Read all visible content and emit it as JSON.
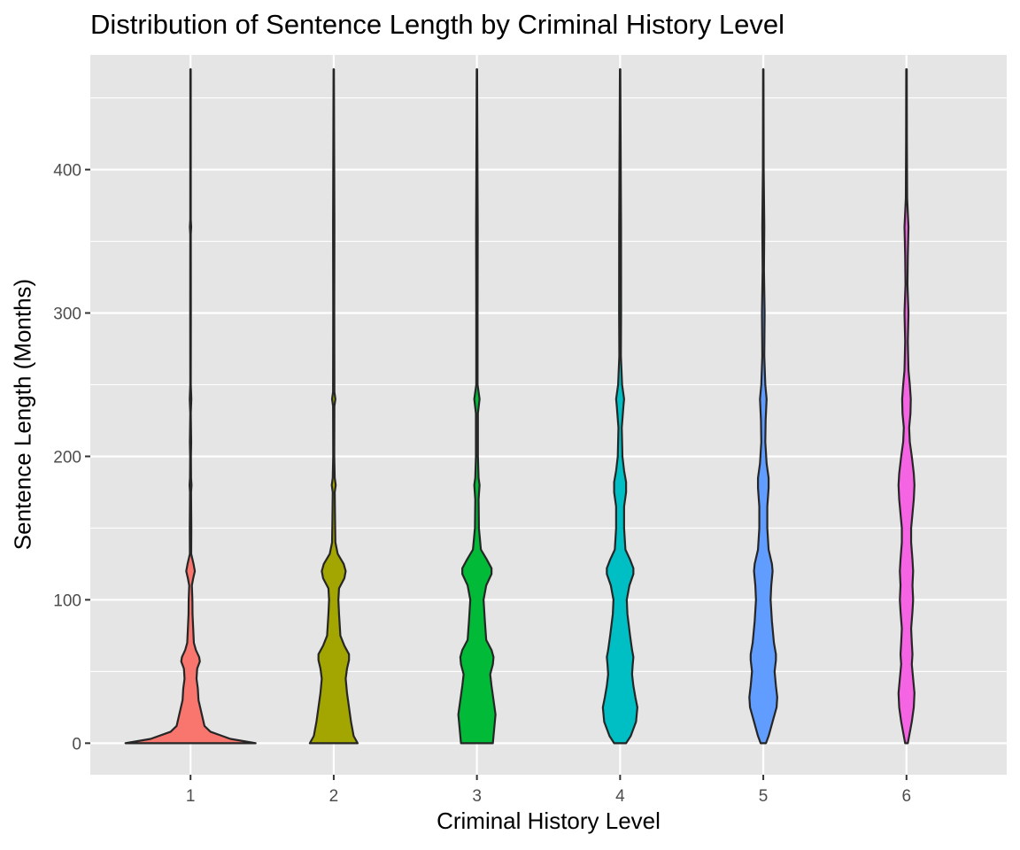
{
  "chart_data": {
    "type": "violin",
    "title": "Distribution of Sentence Length by Criminal History Level",
    "xlabel": "Criminal History Level",
    "ylabel": "Sentence Length (Months)",
    "categories": [
      "1",
      "2",
      "3",
      "4",
      "5",
      "6"
    ],
    "ylim": [
      -22,
      480
    ],
    "yticks": [
      0,
      100,
      200,
      300,
      400
    ],
    "grid": true,
    "legend": "none",
    "background": "#e5e5e5",
    "outline_color": "#262626",
    "series": [
      {
        "category": "1",
        "color": "#f8766d",
        "data_range": [
          0,
          470
        ],
        "density_profile": [
          [
            0,
            0.98
          ],
          [
            3,
            0.6
          ],
          [
            8,
            0.3
          ],
          [
            12,
            0.21
          ],
          [
            20,
            0.17
          ],
          [
            30,
            0.12
          ],
          [
            38,
            0.11
          ],
          [
            45,
            0.09
          ],
          [
            52,
            0.1
          ],
          [
            57,
            0.14
          ],
          [
            60,
            0.13
          ],
          [
            65,
            0.08
          ],
          [
            70,
            0.05
          ],
          [
            80,
            0.04
          ],
          [
            90,
            0.03
          ],
          [
            100,
            0.028
          ],
          [
            110,
            0.02
          ],
          [
            115,
            0.04
          ],
          [
            120,
            0.065
          ],
          [
            125,
            0.045
          ],
          [
            132,
            0.01
          ],
          [
            150,
            0.012
          ],
          [
            175,
            0.008
          ],
          [
            180,
            0.015
          ],
          [
            185,
            0.008
          ],
          [
            200,
            0.006
          ],
          [
            210,
            0.01
          ],
          [
            230,
            0.004
          ],
          [
            240,
            0.012
          ],
          [
            250,
            0.004
          ],
          [
            300,
            0.005
          ],
          [
            355,
            0.004
          ],
          [
            360,
            0.01
          ],
          [
            365,
            0.004
          ],
          [
            470,
            0.003
          ]
        ]
      },
      {
        "category": "2",
        "color": "#a3a500",
        "data_range": [
          0,
          470
        ],
        "density_profile": [
          [
            0,
            0.36
          ],
          [
            5,
            0.3
          ],
          [
            15,
            0.26
          ],
          [
            25,
            0.23
          ],
          [
            35,
            0.2
          ],
          [
            45,
            0.18
          ],
          [
            52,
            0.2
          ],
          [
            58,
            0.23
          ],
          [
            62,
            0.23
          ],
          [
            68,
            0.16
          ],
          [
            75,
            0.1
          ],
          [
            90,
            0.08
          ],
          [
            100,
            0.07
          ],
          [
            108,
            0.08
          ],
          [
            115,
            0.16
          ],
          [
            120,
            0.18
          ],
          [
            125,
            0.15
          ],
          [
            132,
            0.06
          ],
          [
            140,
            0.025
          ],
          [
            155,
            0.02
          ],
          [
            175,
            0.015
          ],
          [
            180,
            0.03
          ],
          [
            185,
            0.015
          ],
          [
            200,
            0.008
          ],
          [
            235,
            0.01
          ],
          [
            240,
            0.025
          ],
          [
            245,
            0.01
          ],
          [
            300,
            0.008
          ],
          [
            360,
            0.01
          ],
          [
            470,
            0.003
          ]
        ]
      },
      {
        "category": "3",
        "color": "#00ba38",
        "data_range": [
          0,
          470
        ],
        "density_profile": [
          [
            0,
            0.24
          ],
          [
            10,
            0.26
          ],
          [
            20,
            0.28
          ],
          [
            30,
            0.25
          ],
          [
            40,
            0.22
          ],
          [
            48,
            0.2
          ],
          [
            55,
            0.24
          ],
          [
            60,
            0.25
          ],
          [
            65,
            0.22
          ],
          [
            72,
            0.14
          ],
          [
            85,
            0.12
          ],
          [
            100,
            0.1
          ],
          [
            110,
            0.14
          ],
          [
            118,
            0.22
          ],
          [
            122,
            0.22
          ],
          [
            128,
            0.15
          ],
          [
            135,
            0.06
          ],
          [
            150,
            0.03
          ],
          [
            170,
            0.025
          ],
          [
            180,
            0.04
          ],
          [
            185,
            0.025
          ],
          [
            200,
            0.015
          ],
          [
            230,
            0.015
          ],
          [
            240,
            0.04
          ],
          [
            250,
            0.01
          ],
          [
            300,
            0.01
          ],
          [
            360,
            0.012
          ],
          [
            470,
            0.003
          ]
        ]
      },
      {
        "category": "4",
        "color": "#00bfc4",
        "data_range": [
          0,
          470
        ],
        "density_profile": [
          [
            0,
            0.09
          ],
          [
            5,
            0.16
          ],
          [
            15,
            0.24
          ],
          [
            25,
            0.26
          ],
          [
            32,
            0.23
          ],
          [
            40,
            0.2
          ],
          [
            48,
            0.18
          ],
          [
            55,
            0.19
          ],
          [
            60,
            0.2
          ],
          [
            65,
            0.18
          ],
          [
            75,
            0.15
          ],
          [
            90,
            0.11
          ],
          [
            100,
            0.1
          ],
          [
            110,
            0.14
          ],
          [
            118,
            0.2
          ],
          [
            122,
            0.2
          ],
          [
            128,
            0.15
          ],
          [
            135,
            0.08
          ],
          [
            150,
            0.06
          ],
          [
            165,
            0.06
          ],
          [
            175,
            0.09
          ],
          [
            182,
            0.09
          ],
          [
            190,
            0.06
          ],
          [
            200,
            0.035
          ],
          [
            220,
            0.025
          ],
          [
            235,
            0.05
          ],
          [
            240,
            0.06
          ],
          [
            250,
            0.03
          ],
          [
            270,
            0.012
          ],
          [
            300,
            0.015
          ],
          [
            360,
            0.014
          ],
          [
            470,
            0.003
          ]
        ]
      },
      {
        "category": "5",
        "color": "#619cff",
        "data_range": [
          0,
          470
        ],
        "density_profile": [
          [
            0,
            0.04
          ],
          [
            5,
            0.08
          ],
          [
            15,
            0.14
          ],
          [
            25,
            0.2
          ],
          [
            32,
            0.21
          ],
          [
            40,
            0.19
          ],
          [
            50,
            0.17
          ],
          [
            58,
            0.19
          ],
          [
            62,
            0.19
          ],
          [
            70,
            0.16
          ],
          [
            85,
            0.13
          ],
          [
            100,
            0.11
          ],
          [
            110,
            0.12
          ],
          [
            120,
            0.14
          ],
          [
            125,
            0.13
          ],
          [
            135,
            0.08
          ],
          [
            150,
            0.06
          ],
          [
            165,
            0.06
          ],
          [
            178,
            0.08
          ],
          [
            185,
            0.08
          ],
          [
            195,
            0.05
          ],
          [
            210,
            0.03
          ],
          [
            225,
            0.035
          ],
          [
            240,
            0.05
          ],
          [
            250,
            0.03
          ],
          [
            270,
            0.015
          ],
          [
            300,
            0.02
          ],
          [
            330,
            0.01
          ],
          [
            360,
            0.015
          ],
          [
            400,
            0.006
          ],
          [
            470,
            0.003
          ]
        ]
      },
      {
        "category": "6",
        "color": "#f564e3",
        "data_range": [
          0,
          470
        ],
        "density_profile": [
          [
            0,
            0.02
          ],
          [
            5,
            0.04
          ],
          [
            15,
            0.08
          ],
          [
            25,
            0.11
          ],
          [
            35,
            0.12
          ],
          [
            45,
            0.1
          ],
          [
            55,
            0.08
          ],
          [
            62,
            0.09
          ],
          [
            70,
            0.08
          ],
          [
            80,
            0.07
          ],
          [
            92,
            0.09
          ],
          [
            100,
            0.1
          ],
          [
            110,
            0.09
          ],
          [
            120,
            0.1
          ],
          [
            128,
            0.09
          ],
          [
            140,
            0.07
          ],
          [
            150,
            0.07
          ],
          [
            160,
            0.09
          ],
          [
            170,
            0.11
          ],
          [
            180,
            0.12
          ],
          [
            188,
            0.11
          ],
          [
            200,
            0.08
          ],
          [
            210,
            0.05
          ],
          [
            220,
            0.04
          ],
          [
            230,
            0.06
          ],
          [
            240,
            0.065
          ],
          [
            250,
            0.05
          ],
          [
            260,
            0.03
          ],
          [
            270,
            0.025
          ],
          [
            280,
            0.02
          ],
          [
            290,
            0.025
          ],
          [
            300,
            0.03
          ],
          [
            320,
            0.015
          ],
          [
            340,
            0.02
          ],
          [
            360,
            0.03
          ],
          [
            380,
            0.01
          ],
          [
            420,
            0.006
          ],
          [
            470,
            0.004
          ]
        ]
      }
    ]
  }
}
